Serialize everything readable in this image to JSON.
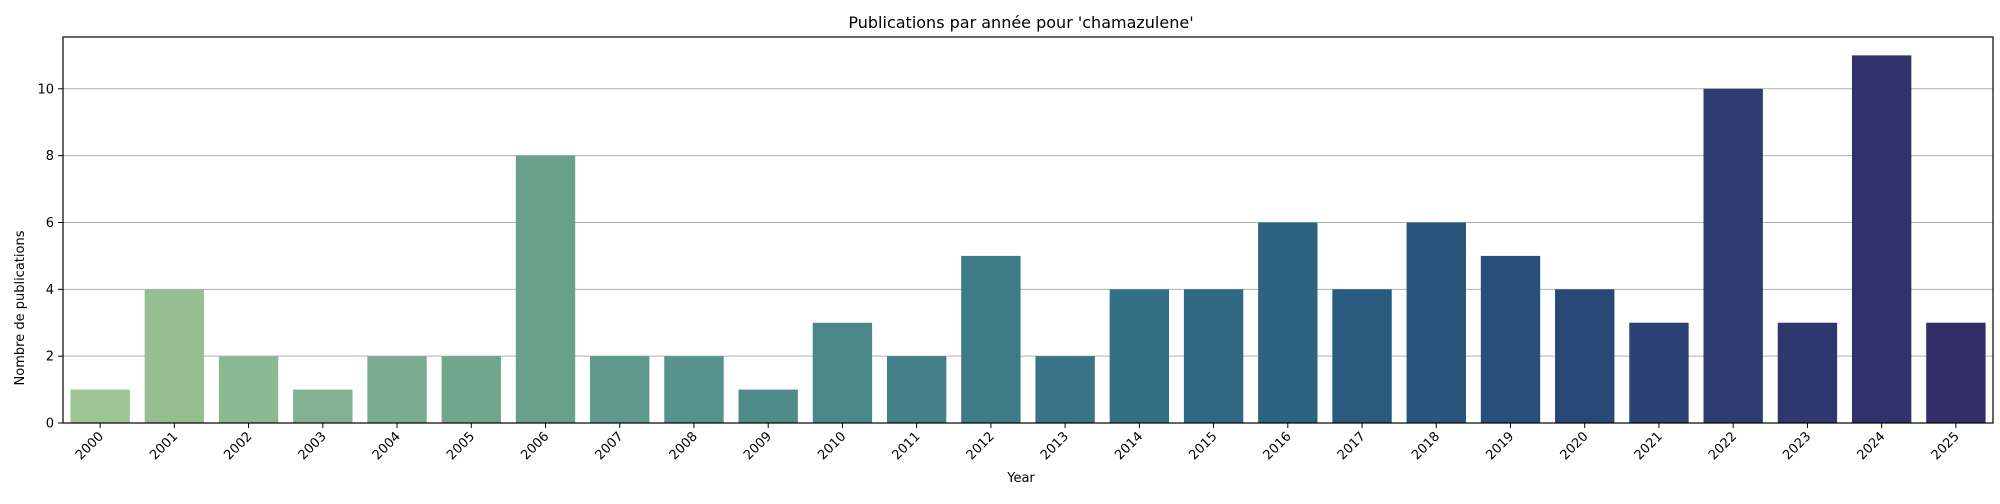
{
  "chart_data": {
    "type": "bar",
    "title": "Publications par année pour 'chamazulene'",
    "xlabel": "Year",
    "ylabel": "Nombre de publications",
    "categories": [
      "2000",
      "2001",
      "2002",
      "2003",
      "2004",
      "2005",
      "2006",
      "2007",
      "2008",
      "2009",
      "2010",
      "2011",
      "2012",
      "2013",
      "2014",
      "2015",
      "2016",
      "2017",
      "2018",
      "2019",
      "2020",
      "2021",
      "2022",
      "2023",
      "2024",
      "2025"
    ],
    "values": [
      1,
      4,
      2,
      1,
      2,
      2,
      8,
      2,
      2,
      1,
      3,
      2,
      5,
      2,
      4,
      4,
      6,
      4,
      6,
      5,
      4,
      3,
      10,
      3,
      11,
      3
    ],
    "ylim": [
      0,
      11.55
    ],
    "yticks": [
      0,
      2,
      4,
      6,
      8,
      10
    ],
    "grid": "y",
    "palette": "crest (green to dark blue gradient)",
    "colors": [
      "#9ec494",
      "#95bf93",
      "#8cb892",
      "#82b191",
      "#79ab90",
      "#71a68e",
      "#69a08c",
      "#5f998b",
      "#57938a",
      "#4f8c89",
      "#498788",
      "#438087",
      "#3d7b86",
      "#387485",
      "#336f84",
      "#2f6882",
      "#2b6380",
      "#295b7e",
      "#28557c",
      "#284e7a",
      "#294877",
      "#2a4274",
      "#2c3c71",
      "#2e376e",
      "#31326b",
      "#332e68"
    ]
  }
}
